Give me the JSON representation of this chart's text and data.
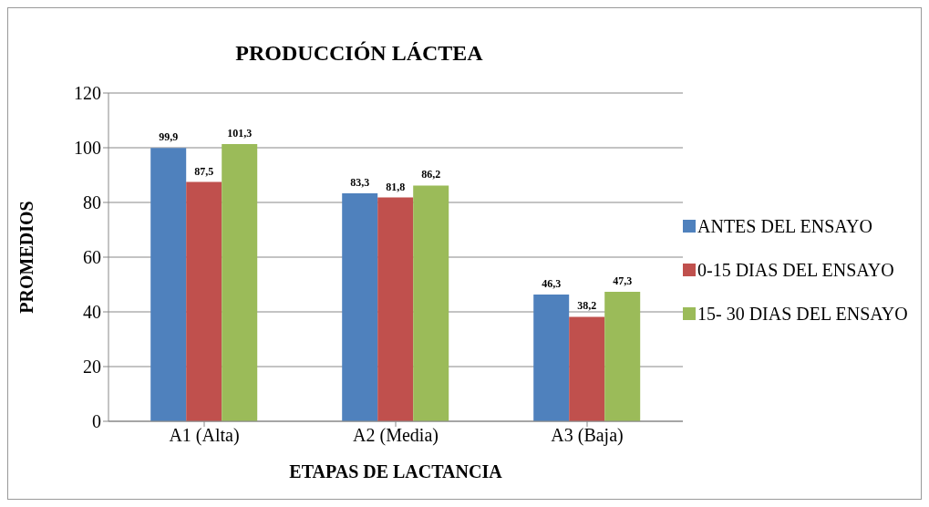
{
  "chart_data": {
    "type": "bar",
    "title": "PRODUCCIÓN LÁCTEA",
    "xlabel": "ETAPAS DE LACTANCIA",
    "ylabel": "PROMEDIOS",
    "categories": [
      "A1 (Alta)",
      "A2 (Media)",
      "A3 (Baja)"
    ],
    "series": [
      {
        "name": "ANTES DEL ENSAYO",
        "color": "#4f81bd",
        "values": [
          99.9,
          83.3,
          46.3
        ],
        "value_labels": [
          "99,9",
          "83,3",
          "46,3"
        ]
      },
      {
        "name": "0-15 DIAS DEL ENSAYO",
        "color": "#c0504d",
        "values": [
          87.5,
          81.8,
          38.2
        ],
        "value_labels": [
          "87,5",
          "81,8",
          "38,2"
        ]
      },
      {
        "name": "15- 30 DIAS DEL ENSAYO",
        "color": "#9bbb59",
        "values": [
          101.3,
          86.2,
          47.3
        ],
        "value_labels": [
          "101,3",
          "86,2",
          "47,3"
        ]
      }
    ],
    "ylim": [
      0,
      120
    ],
    "yticks": [
      0,
      20,
      40,
      60,
      80,
      100,
      120
    ],
    "grid": "y",
    "legend": "right"
  }
}
